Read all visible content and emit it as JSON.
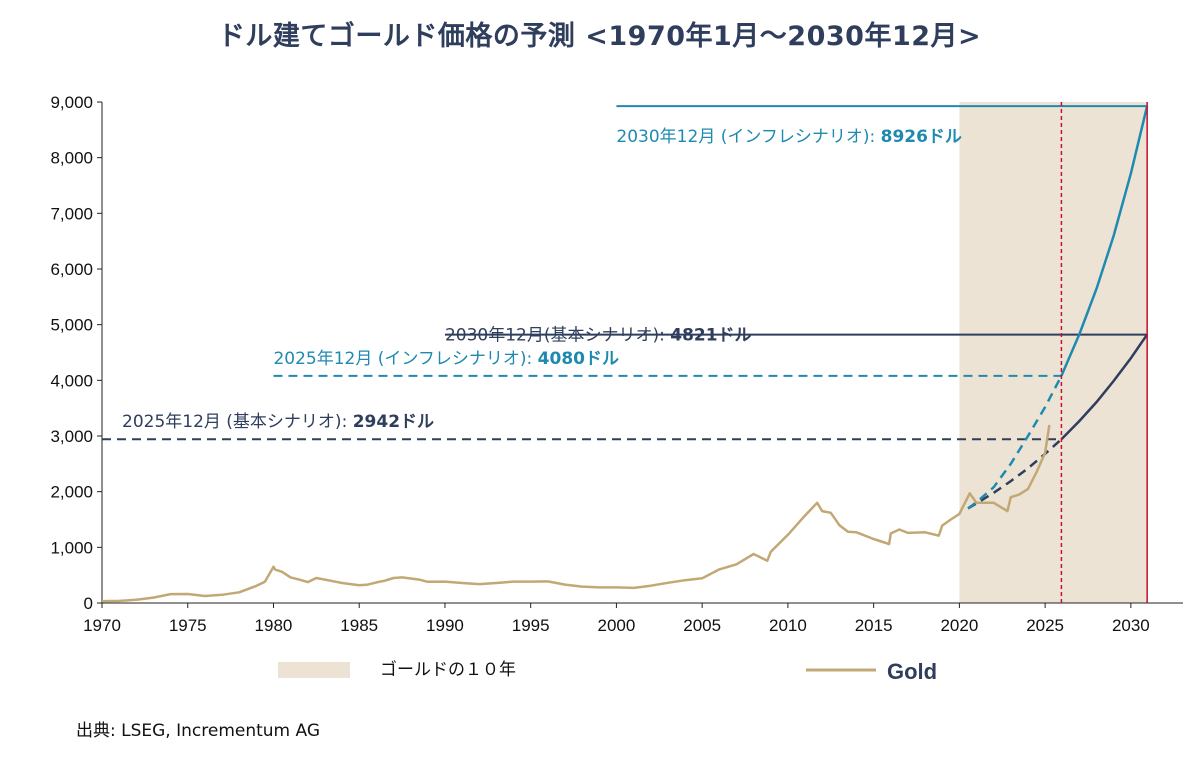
{
  "chart_data": {
    "type": "line",
    "title": "ドル建てゴールド価格の予測 <1970年1月～2030年12月>",
    "xlabel": "",
    "ylabel": "",
    "xlim": [
      1970,
      2031
    ],
    "ylim": [
      0,
      9000
    ],
    "x_ticks": [
      "1970",
      "1975",
      "1980",
      "1985",
      "1990",
      "1995",
      "2000",
      "2005",
      "2010",
      "2015",
      "2020",
      "2025",
      "2030"
    ],
    "y_ticks": [
      "0",
      "1,000",
      "2,000",
      "3,000",
      "4,000",
      "5,000",
      "6,000",
      "7,000",
      "8,000",
      "9,000"
    ],
    "shaded_region": {
      "label": "ゴールドの１０年",
      "from": 2020,
      "to": 2031,
      "color": "#ece3d4"
    },
    "series": [
      {
        "name": "Gold",
        "color": "#c2a874",
        "x": [
          1970,
          1971,
          1972,
          1973,
          1974,
          1975,
          1976,
          1977,
          1978,
          1979,
          1979.5,
          1980,
          1980.1,
          1980.5,
          1981,
          1981.5,
          1982,
          1982.5,
          1983,
          1983.5,
          1984,
          1984.5,
          1985,
          1985.5,
          1986,
          1986.5,
          1987,
          1987.5,
          1988,
          1988.5,
          1989,
          1990,
          1991,
          1992,
          1993,
          1994,
          1995,
          1996,
          1997,
          1998,
          1999,
          2000,
          2001,
          2002,
          2003,
          2004,
          2005,
          2006,
          2007,
          2008,
          2008.8,
          2009,
          2010,
          2011,
          2011.7,
          2012,
          2012.5,
          2013,
          2013.5,
          2014,
          2015,
          2015.9,
          2016,
          2016.5,
          2017,
          2018,
          2018.8,
          2019,
          2019.5,
          2020,
          2020.6,
          2021,
          2022,
          2022.8,
          2023,
          2023.5,
          2024,
          2024.5,
          2025,
          2025.25
        ],
        "y": [
          35,
          38,
          58,
          97,
          159,
          161,
          125,
          148,
          193,
          307,
          380,
          650,
          600,
          560,
          460,
          420,
          375,
          450,
          420,
          390,
          360,
          340,
          320,
          330,
          370,
          400,
          450,
          460,
          440,
          420,
          380,
          385,
          360,
          340,
          360,
          385,
          385,
          388,
          330,
          295,
          280,
          280,
          272,
          310,
          363,
          410,
          444,
          603,
          695,
          880,
          760,
          920,
          1225,
          1570,
          1800,
          1650,
          1620,
          1400,
          1280,
          1270,
          1150,
          1060,
          1250,
          1320,
          1260,
          1270,
          1210,
          1390,
          1500,
          1600,
          1970,
          1800,
          1800,
          1650,
          1900,
          1950,
          2050,
          2350,
          2700,
          3200
        ]
      }
    ],
    "projections": [
      {
        "name": "基本シナリオ",
        "color": "#2f3e5c",
        "x": [
          2020.5,
          2021,
          2022,
          2023,
          2024,
          2025,
          2025.95,
          2027,
          2028,
          2029,
          2030,
          2030.95
        ],
        "y": [
          1700,
          1790,
          1980,
          2190,
          2420,
          2680,
          2942,
          3270,
          3610,
          3990,
          4400,
          4821
        ]
      },
      {
        "name": "インフレシナリオ",
        "color": "#1f8ab0",
        "x": [
          2020.5,
          2021,
          2022,
          2023,
          2024,
          2025,
          2025.95,
          2027,
          2028,
          2029,
          2030,
          2030.95
        ],
        "y": [
          1700,
          1810,
          2080,
          2500,
          3000,
          3520,
          4080,
          4830,
          5650,
          6600,
          7720,
          8926
        ]
      }
    ],
    "reference_lines": [
      {
        "label": "2030年12月 (インフレシナリオ):",
        "value_label": "8926ドル",
        "value": 8926,
        "from": 2000,
        "to": 2030.95,
        "color": "#1f8ab0",
        "style": "solid"
      },
      {
        "label": "2030年12月(基本シナリオ):",
        "value_label": "4821ドル",
        "value": 4821,
        "from": 1990,
        "to": 2030.95,
        "color": "#2f3e5c",
        "style": "solid"
      },
      {
        "label": "2025年12月 (インフレシナリオ):",
        "value_label": "4080ドル",
        "value": 4080,
        "from": 1980,
        "to": 2025.95,
        "color": "#1f8ab0",
        "style": "dashed"
      },
      {
        "label": "2025年12月 (基本シナリオ):",
        "value_label": "2942ドル",
        "value": 2942,
        "from": 1970,
        "to": 2025.95,
        "color": "#2f3e5c",
        "style": "dashed"
      }
    ],
    "vertical_lines": [
      {
        "x": 2025.95,
        "color": "#c8102e",
        "style": "dotted"
      },
      {
        "x": 2030.95,
        "color": "#c8102e",
        "style": "solid"
      }
    ],
    "legend": [
      {
        "type": "area",
        "label": "ゴールドの１０年",
        "color": "#ece3d4"
      },
      {
        "type": "line",
        "label": "Gold",
        "color": "#c2a874"
      }
    ]
  },
  "source": "出典: LSEG, Incrementum AG"
}
